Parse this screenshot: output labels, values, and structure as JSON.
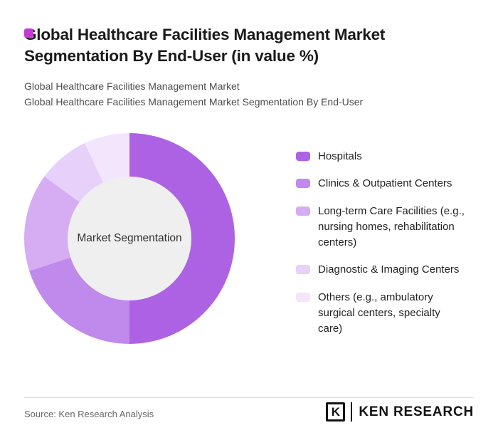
{
  "brand": {
    "accent_color": "#c43bd4"
  },
  "header": {
    "title": "Global Healthcare Facilities Management Market Segmentation By End-User (in value %)",
    "subtitle_line1": "Global Healthcare Facilities Management Market",
    "subtitle_line2": "Global Healthcare Facilities Management Market Segmentation By End-User"
  },
  "chart_data": {
    "type": "pie",
    "donut": true,
    "title": "Global Healthcare Facilities Management Market Segmentation By End-User (in value %)",
    "center_label": "Market Segmentation",
    "categories": [
      "Hospitals",
      "Clinics & Outpatient Centers",
      "Long-term Care Facilities (e.g., nursing homes, rehabilitation centers)",
      "Diagnostic & Imaging Centers",
      "Others (e.g., ambulatory surgical centers, specialty care)"
    ],
    "values": [
      50,
      20,
      15,
      8,
      7
    ],
    "colors": [
      "#ad62e3",
      "#c08aec",
      "#d6adf3",
      "#e7d0fa",
      "#f2e5fc"
    ],
    "legend_position": "right",
    "start_angle_deg": 0,
    "direction": "clockwise"
  },
  "footer": {
    "source": "Source: Ken Research Analysis",
    "logo_k": "K",
    "logo_text": "KEN RESEARCH"
  }
}
